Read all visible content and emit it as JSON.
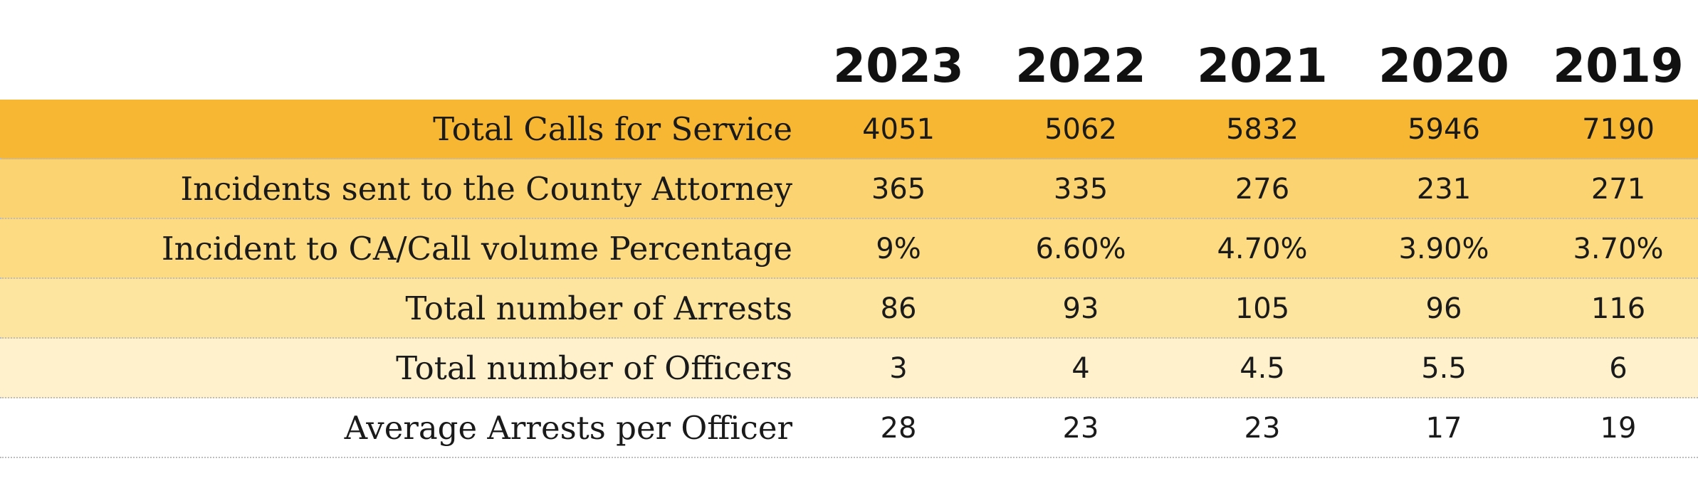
{
  "chart_data": {
    "type": "table",
    "columns": [
      "2023",
      "2022",
      "2021",
      "2020",
      "2019"
    ],
    "rows": [
      {
        "label": "Total Calls for Service",
        "values": [
          "4051",
          "5062",
          "5832",
          "5946",
          "7190"
        ]
      },
      {
        "label": "Incidents sent to the County Attorney",
        "values": [
          "365",
          "335",
          "276",
          "231",
          "271"
        ]
      },
      {
        "label": "Incident to CA/Call volume Percentage",
        "values": [
          "9%",
          "6.60%",
          "4.70%",
          "3.90%",
          "3.70%"
        ]
      },
      {
        "label": "Total number of Arrests",
        "values": [
          "86",
          "93",
          "105",
          "96",
          "116"
        ]
      },
      {
        "label": "Total number of Officers",
        "values": [
          "3",
          "4",
          "4.5",
          "5.5",
          "6"
        ]
      },
      {
        "label": "Average Arrests per Officer",
        "values": [
          "28",
          "23",
          "23",
          "17",
          "19"
        ]
      }
    ]
  },
  "colors": {
    "row_backgrounds": [
      "#f7b732",
      "#fbd370",
      "#fcdb83",
      "#fde59f",
      "#fef1cc",
      "#ffffff"
    ],
    "text": "#1a1a1a"
  }
}
